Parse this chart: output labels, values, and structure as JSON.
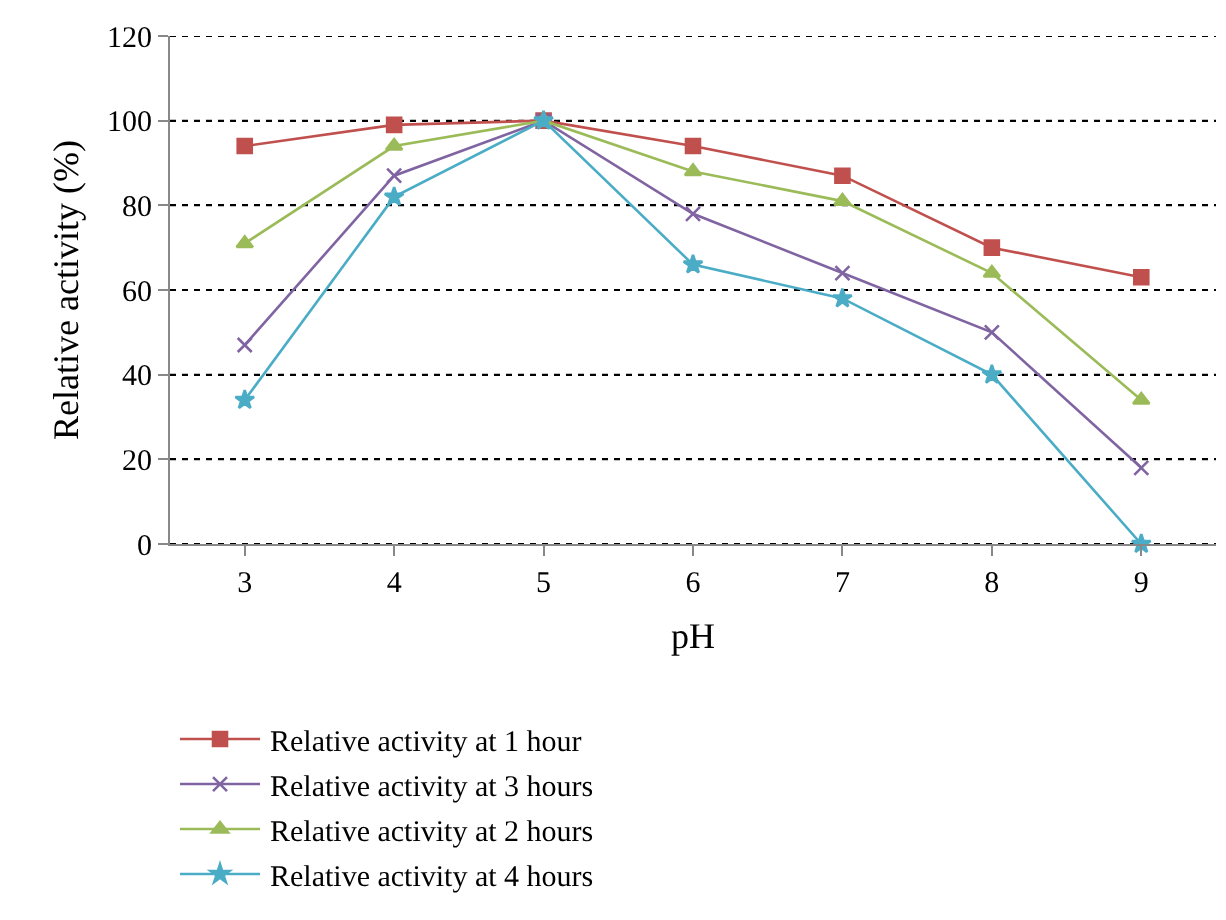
{
  "chart_data": {
    "type": "line",
    "xlabel": "pH",
    "ylabel": "Relative activity (%)",
    "categories": [
      "3",
      "4",
      "5",
      "6",
      "7",
      "8",
      "9"
    ],
    "series": [
      {
        "name": "Relative activity at 1 hour",
        "color": "#c0504d",
        "marker": "square",
        "values": [
          94,
          99,
          100,
          94,
          87,
          70,
          63
        ]
      },
      {
        "name": "Relative activity at 3 hours",
        "color": "#8064a2",
        "marker": "cross",
        "values": [
          47,
          87,
          100,
          78,
          64,
          50,
          18
        ]
      },
      {
        "name": "Relative activity at 2 hours",
        "color": "#9bbb59",
        "marker": "triangle",
        "values": [
          71,
          94,
          100,
          88,
          81,
          64,
          34
        ]
      },
      {
        "name": "Relative activity at 4 hours",
        "color": "#4bacc6",
        "marker": "star",
        "values": [
          34,
          82,
          100,
          66,
          58,
          40,
          0
        ]
      }
    ],
    "ylim": [
      0,
      120
    ],
    "yticks": [
      0,
      20,
      40,
      60,
      80,
      100,
      120
    ],
    "grid": "y",
    "legend": "bottom",
    "line_style": "solid"
  }
}
